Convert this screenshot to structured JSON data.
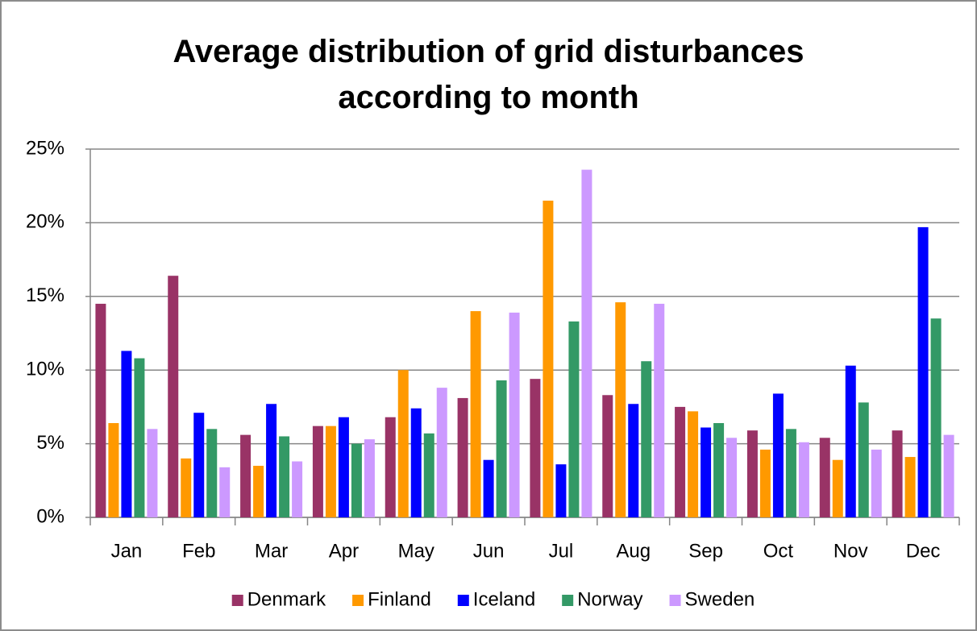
{
  "chart_data": {
    "type": "bar",
    "title": "Average distribution of grid disturbances according to month",
    "categories": [
      "Jan",
      "Feb",
      "Mar",
      "Apr",
      "May",
      "Jun",
      "Jul",
      "Aug",
      "Sep",
      "Oct",
      "Nov",
      "Dec"
    ],
    "series": [
      {
        "name": "Denmark",
        "color": "#993366",
        "values": [
          14.5,
          16.4,
          5.6,
          6.2,
          6.8,
          8.1,
          9.4,
          8.3,
          7.5,
          5.9,
          5.4,
          5.9
        ]
      },
      {
        "name": "Finland",
        "color": "#ff9900",
        "values": [
          6.4,
          4.0,
          3.5,
          6.2,
          10.0,
          14.0,
          21.5,
          14.6,
          7.2,
          4.6,
          3.9,
          4.1
        ]
      },
      {
        "name": "Iceland",
        "color": "#0000ff",
        "values": [
          11.3,
          7.1,
          7.7,
          6.8,
          7.4,
          3.9,
          3.6,
          7.7,
          6.1,
          8.4,
          10.3,
          19.7
        ]
      },
      {
        "name": "Norway",
        "color": "#339966",
        "values": [
          10.8,
          6.0,
          5.5,
          5.0,
          5.7,
          9.3,
          13.3,
          10.6,
          6.4,
          6.0,
          7.8,
          13.5
        ]
      },
      {
        "name": "Sweden",
        "color": "#cc99ff",
        "values": [
          6.0,
          3.4,
          3.8,
          5.3,
          8.8,
          13.9,
          23.6,
          14.5,
          5.4,
          5.1,
          4.6,
          5.6
        ]
      }
    ],
    "ylim": [
      0,
      25
    ],
    "yticks": [
      {
        "value": 0,
        "label": "0%"
      },
      {
        "value": 5,
        "label": "5%"
      },
      {
        "value": 10,
        "label": "10%"
      },
      {
        "value": 15,
        "label": "15%"
      },
      {
        "value": 20,
        "label": "20%"
      },
      {
        "value": 25,
        "label": "25%"
      }
    ],
    "grid": true,
    "legend": "bottom"
  }
}
